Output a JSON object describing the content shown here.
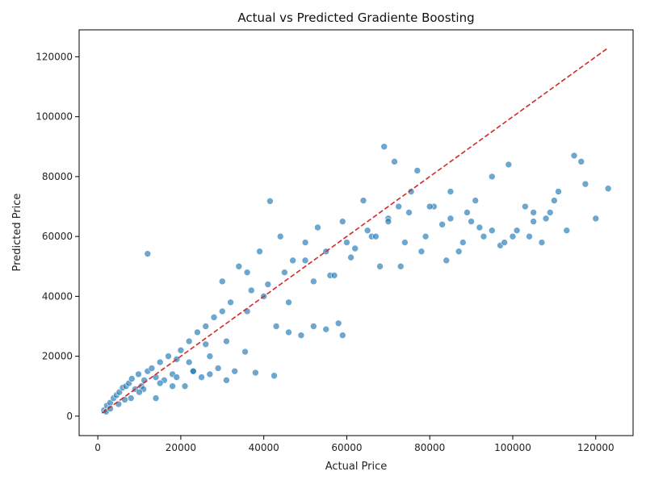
{
  "chart_data": {
    "type": "scatter",
    "title": "Actual vs Predicted Gradiente Boosting",
    "xlabel": "Actual Price",
    "ylabel": "Predicted Price",
    "xlim": [
      -4500,
      129000
    ],
    "ylim": [
      -6500,
      129000
    ],
    "xticks": [
      0,
      20000,
      40000,
      60000,
      80000,
      100000,
      120000
    ],
    "yticks": [
      0,
      20000,
      40000,
      60000,
      80000,
      100000,
      120000
    ],
    "grid": false,
    "colors": {
      "point": "#1f77b4",
      "reference_line": "#d62728"
    },
    "series": [
      {
        "kind": "reference",
        "style": "dashed",
        "x": [
          1000,
          123000
        ],
        "y": [
          1000,
          123000
        ]
      },
      {
        "kind": "points",
        "x": [
          1500,
          2200,
          3000,
          3800,
          4500,
          5200,
          6000,
          6800,
          7500,
          8200,
          9000,
          9800,
          10500,
          11200,
          12000,
          13000,
          14000,
          15000,
          16000,
          17000,
          18000,
          19000,
          20000,
          21000,
          22000,
          23000,
          24000,
          25000,
          26000,
          27000,
          28000,
          29000,
          30000,
          31000,
          32000,
          33000,
          12000,
          37000,
          41500,
          42500,
          35500,
          38000,
          43000,
          46000,
          49000,
          52000,
          55000,
          58000,
          59000,
          30000,
          34000,
          36000,
          39000,
          41000,
          44000,
          47000,
          50000,
          53000,
          56000,
          59000,
          62000,
          64000,
          66000,
          68000,
          69000,
          70000,
          71500,
          72500,
          74000,
          75500,
          77000,
          79000,
          81000,
          83000,
          85000,
          87000,
          89000,
          91000,
          93000,
          95000,
          97000,
          99000,
          101000,
          103000,
          105000,
          107000,
          109000,
          111000,
          113000,
          114800,
          116500,
          117500,
          120000,
          123000,
          2000,
          5000,
          8000,
          11000,
          15000,
          19000,
          23000,
          27000,
          31000,
          36000,
          40000,
          45000,
          50000,
          55000,
          60000,
          65000,
          70000,
          75000,
          80000,
          85000,
          90000,
          95000,
          100000,
          105000,
          110000,
          3000,
          6500,
          10000,
          14000,
          18000,
          22000,
          26000,
          46000,
          52000,
          57000,
          61000,
          67000,
          73000,
          78000,
          84000,
          88000,
          92000,
          98000,
          104000,
          108000
        ],
        "y": [
          2000,
          3500,
          4500,
          6000,
          7000,
          8000,
          9500,
          10000,
          11000,
          12500,
          9000,
          14000,
          10000,
          12000,
          15000,
          16000,
          13000,
          18000,
          12000,
          20000,
          14000,
          19000,
          22000,
          10000,
          25000,
          15000,
          28000,
          13000,
          30000,
          14000,
          33000,
          16000,
          35000,
          12000,
          38000,
          15000,
          54200,
          42000,
          71800,
          13500,
          21500,
          14500,
          30000,
          28000,
          27000,
          30000,
          29000,
          31000,
          27000,
          45000,
          50000,
          48000,
          55000,
          44000,
          60000,
          52000,
          58000,
          63000,
          47000,
          65000,
          56000,
          72000,
          60000,
          50000,
          90000,
          66000,
          85000,
          70000,
          58000,
          75000,
          82000,
          60000,
          70000,
          64000,
          75000,
          55000,
          68000,
          72000,
          60000,
          80000,
          57000,
          84000,
          62000,
          70000,
          65000,
          58000,
          68000,
          75000,
          62000,
          87000,
          85000,
          77500,
          66000,
          76000,
          1500,
          4000,
          6000,
          9000,
          11000,
          13000,
          15000,
          20000,
          25000,
          35000,
          40000,
          48000,
          52000,
          55000,
          58000,
          62000,
          65000,
          68000,
          70000,
          66000,
          65000,
          62000,
          60000,
          68000,
          72000,
          2500,
          5500,
          8000,
          6000,
          10000,
          18000,
          24000,
          38000,
          45000,
          47000,
          53000,
          60000,
          50000,
          55000,
          52000,
          58000,
          63000,
          58000,
          60000,
          66000
        ]
      }
    ]
  }
}
